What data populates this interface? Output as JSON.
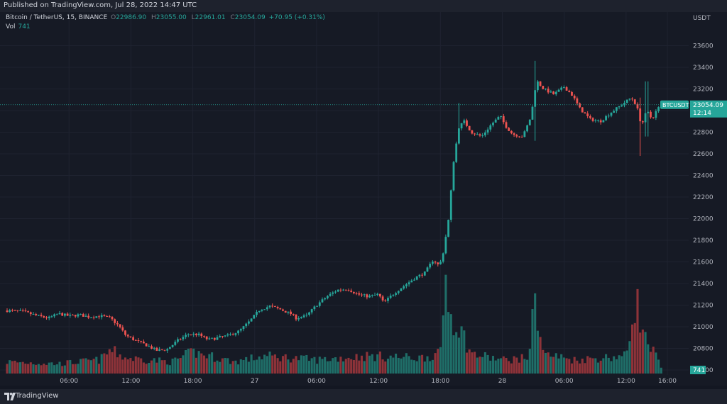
{
  "header": {
    "published": "Published on TradingView.com, Jul 28, 2022 14:47 UTC"
  },
  "legend": {
    "symbol": "Bitcoin / TetherUS, 15, BINANCE",
    "o_label": "O",
    "o": "22986.90",
    "h_label": "H",
    "h": "23055.00",
    "l_label": "L",
    "l": "22961.01",
    "c_label": "C",
    "c": "23054.09",
    "change": "+70.95 (+0.31%)",
    "vol_label": "Vol",
    "vol": "741"
  },
  "price_axis": {
    "unit": "USDT"
  },
  "last_price": {
    "symbol": "BTCUSDT",
    "value": "23054.09",
    "countdown": "12:14",
    "volume": "741"
  },
  "footer": {
    "brand": "TradingView"
  },
  "colors": {
    "up": "#26a69a",
    "down": "#ef5350",
    "up_vol": "#1f6e68",
    "down_vol": "#8e3339",
    "background": "#161a25"
  },
  "chart_data": {
    "type": "candlestick",
    "title": "Bitcoin / TetherUS, 15, BINANCE",
    "interval": "15",
    "ylabel": "USDT",
    "ylim": [
      20500,
      23700
    ],
    "yticks": [
      20600,
      20800,
      21000,
      21200,
      21400,
      21600,
      21800,
      22000,
      22200,
      22400,
      22600,
      22800,
      23000,
      23200,
      23400,
      23600
    ],
    "x_ticks": [
      {
        "label": "06:00",
        "hour": 6
      },
      {
        "label": "12:00",
        "hour": 12
      },
      {
        "label": "18:00",
        "hour": 18
      },
      {
        "label": "27",
        "hour": 24
      },
      {
        "label": "06:00",
        "hour": 30
      },
      {
        "label": "12:00",
        "hour": 36
      },
      {
        "label": "18:00",
        "hour": 42
      },
      {
        "label": "28",
        "hour": 48
      },
      {
        "label": "06:00",
        "hour": 54
      },
      {
        "label": "12:00",
        "hour": 60
      },
      {
        "label": "16:00",
        "hour": 64
      }
    ],
    "grid": true,
    "close_path": [
      [
        0,
        21150
      ],
      [
        1.5,
        21140
      ],
      [
        3,
        21100
      ],
      [
        4,
        21080
      ],
      [
        5,
        21120
      ],
      [
        6,
        21100
      ],
      [
        7,
        21110
      ],
      [
        8,
        21090
      ],
      [
        9,
        21100
      ],
      [
        10,
        21080
      ],
      [
        10.8,
        21010
      ],
      [
        11.5,
        20920
      ],
      [
        12.5,
        20870
      ],
      [
        13.5,
        20830
      ],
      [
        14.5,
        20780
      ],
      [
        15.5,
        20790
      ],
      [
        16.5,
        20870
      ],
      [
        17.5,
        20930
      ],
      [
        18.5,
        20930
      ],
      [
        19.5,
        20880
      ],
      [
        20.5,
        20900
      ],
      [
        21.5,
        20920
      ],
      [
        22.5,
        20960
      ],
      [
        23.5,
        21050
      ],
      [
        24.5,
        21160
      ],
      [
        25.5,
        21190
      ],
      [
        26.5,
        21160
      ],
      [
        27.5,
        21120
      ],
      [
        28,
        21080
      ],
      [
        29,
        21100
      ],
      [
        30,
        21200
      ],
      [
        31,
        21280
      ],
      [
        32,
        21340
      ],
      [
        33,
        21350
      ],
      [
        34,
        21300
      ],
      [
        35,
        21280
      ],
      [
        36,
        21300
      ],
      [
        36.5,
        21220
      ],
      [
        37.5,
        21310
      ],
      [
        38.5,
        21380
      ],
      [
        39.5,
        21450
      ],
      [
        40.5,
        21500
      ],
      [
        41.3,
        21620
      ],
      [
        41.9,
        21560
      ],
      [
        42.3,
        21700
      ],
      [
        42.8,
        22000
      ],
      [
        43.3,
        22550
      ],
      [
        43.8,
        22850
      ],
      [
        44.3,
        22900
      ],
      [
        45,
        22800
      ],
      [
        46,
        22760
      ],
      [
        47,
        22880
      ],
      [
        47.8,
        22950
      ],
      [
        48.3,
        22860
      ],
      [
        49,
        22780
      ],
      [
        50,
        22760
      ],
      [
        50.8,
        22950
      ],
      [
        51.3,
        23280
      ],
      [
        52,
        23200
      ],
      [
        53,
        23150
      ],
      [
        54,
        23220
      ],
      [
        54.8,
        23140
      ],
      [
        55.5,
        23020
      ],
      [
        56.5,
        22920
      ],
      [
        57.5,
        22900
      ],
      [
        58.5,
        22980
      ],
      [
        59.5,
        23050
      ],
      [
        60.5,
        23120
      ],
      [
        61,
        23050
      ],
      [
        61.5,
        22860
      ],
      [
        62,
        23000
      ],
      [
        62.5,
        22920
      ],
      [
        63,
        23010
      ],
      [
        63.4,
        23054
      ]
    ],
    "volume_path": [
      [
        0,
        30
      ],
      [
        5,
        25
      ],
      [
        9,
        35
      ],
      [
        10,
        60
      ],
      [
        11.5,
        40
      ],
      [
        16,
        30
      ],
      [
        18,
        55
      ],
      [
        22,
        30
      ],
      [
        25,
        45
      ],
      [
        30,
        35
      ],
      [
        35,
        45
      ],
      [
        40,
        40
      ],
      [
        42,
        50
      ],
      [
        42.5,
        250
      ],
      [
        43,
        150
      ],
      [
        44,
        110
      ],
      [
        45,
        50
      ],
      [
        48,
        35
      ],
      [
        50.5,
        40
      ],
      [
        51.2,
        190
      ],
      [
        52,
        50
      ],
      [
        55,
        35
      ],
      [
        60,
        45
      ],
      [
        61,
        200
      ],
      [
        61.5,
        110
      ],
      [
        62,
        80
      ],
      [
        63,
        40
      ],
      [
        63.4,
        15
      ]
    ],
    "volume_ylim": [
      0,
      400
    ],
    "spike_candles": [
      {
        "hour": 43.8,
        "high": 23070,
        "low": 22700
      },
      {
        "hour": 51.2,
        "high": 23460,
        "low": 22720
      },
      {
        "hour": 61.3,
        "high": 23120,
        "low": 22580
      },
      {
        "hour": 62.0,
        "high": 23270,
        "low": 22760
      }
    ],
    "candle_count": 250,
    "last_close": 23054.09,
    "current_volume": 741
  }
}
